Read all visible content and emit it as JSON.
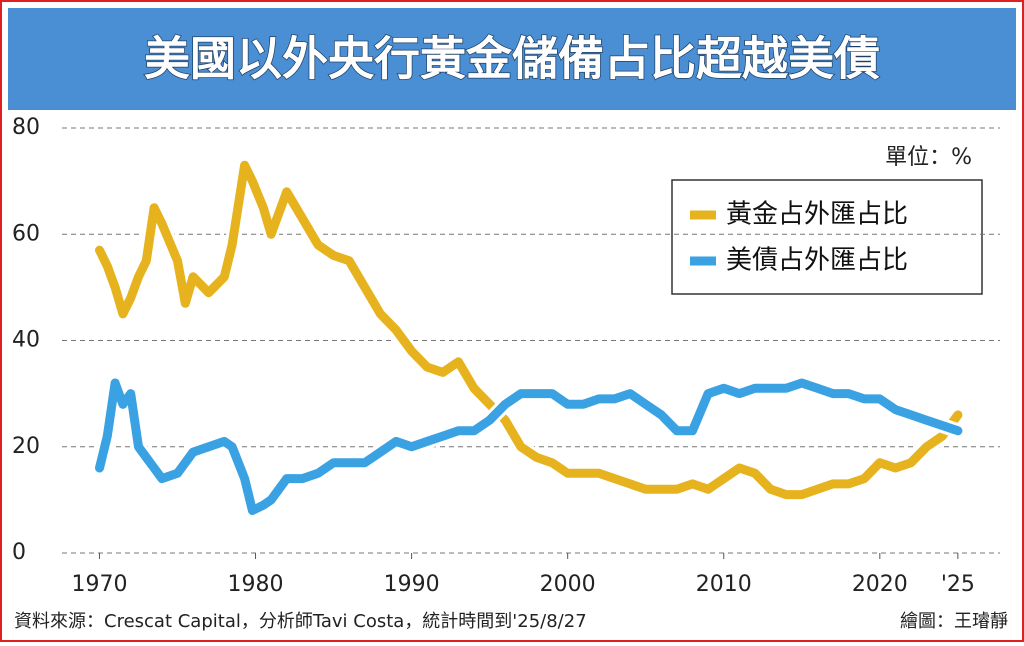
{
  "chart_data": {
    "type": "line",
    "title": "美國以外央行黃金儲備占比超越美債",
    "unit_label": "單位：%",
    "source": "資料來源：Crescat Capital，分析師Tavi Costa，統計時間到'25/8/27",
    "credit": "繪圖：王璿靜",
    "x": [
      1970,
      1970.5,
      1971,
      1971.5,
      1972,
      1972.5,
      1973,
      1973.5,
      1974,
      1975,
      1975.5,
      1976,
      1977,
      1978,
      1978.5,
      1979.3,
      1979.8,
      1980.5,
      1981,
      1982,
      1983,
      1984,
      1985,
      1986,
      1987,
      1988,
      1989,
      1990,
      1991,
      1992,
      1993,
      1994,
      1995,
      1996,
      1997,
      1998,
      1999,
      2000,
      2001,
      2002,
      2003,
      2004,
      2005,
      2006,
      2007,
      2008,
      2009,
      2010,
      2011,
      2012,
      2013,
      2014,
      2015,
      2016,
      2017,
      2018,
      2019,
      2020,
      2021,
      2022,
      2023,
      2024,
      2025
    ],
    "series": [
      {
        "name": "黃金占外匯占比",
        "color": "#e6b31e",
        "values": [
          57,
          54,
          50,
          45,
          48,
          52,
          55,
          65,
          62,
          55,
          47,
          52,
          49,
          52,
          58,
          73,
          70,
          65,
          60,
          68,
          63,
          58,
          56,
          55,
          50,
          45,
          42,
          38,
          35,
          34,
          36,
          31,
          28,
          25,
          20,
          18,
          17,
          15,
          15,
          15,
          14,
          13,
          12,
          12,
          12,
          13,
          12,
          14,
          16,
          15,
          12,
          11,
          11,
          12,
          13,
          13,
          14,
          17,
          16,
          17,
          20,
          22,
          26
        ]
      },
      {
        "name": "美債占外匯占比",
        "color": "#3aa2e2",
        "values": [
          16,
          22,
          32,
          28,
          30,
          20,
          18,
          16,
          14,
          15,
          17,
          19,
          20,
          21,
          20,
          14,
          8,
          9,
          10,
          14,
          14,
          15,
          17,
          17,
          17,
          19,
          21,
          20,
          21,
          22,
          23,
          23,
          25,
          28,
          30,
          30,
          30,
          28,
          28,
          29,
          29,
          30,
          28,
          26,
          23,
          23,
          30,
          31,
          30,
          31,
          31,
          31,
          32,
          31,
          30,
          30,
          29,
          29,
          27,
          26,
          25,
          24,
          23
        ]
      }
    ],
    "xlim": [
      1967.6,
      2027.7
    ],
    "xticks": [
      1970,
      1980,
      1990,
      2000,
      2010,
      2020,
      {
        "value": 2025,
        "label": "'25"
      }
    ],
    "ylim": [
      0,
      80
    ],
    "yticks": [
      0,
      20,
      40,
      60,
      80
    ],
    "grid": true
  }
}
